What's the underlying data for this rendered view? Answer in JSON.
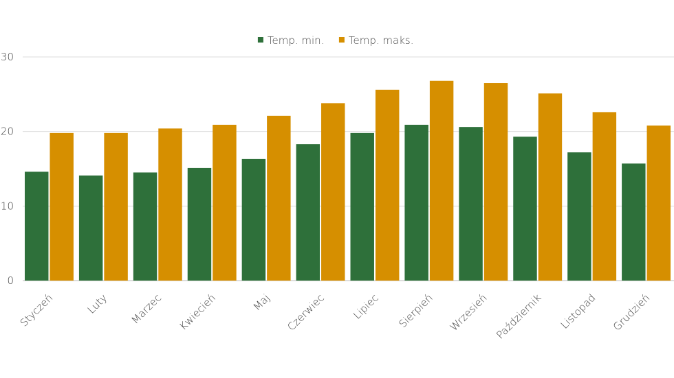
{
  "chart_data": {
    "type": "bar",
    "categories": [
      "Styczeń",
      "Luty",
      "Marzec",
      "Kwiecień",
      "Maj",
      "Czerwiec",
      "Lipiec",
      "Sierpień",
      "Wrzesień",
      "Październik",
      "Listopad",
      "Grudzień"
    ],
    "series": [
      {
        "name": "Temp. min.",
        "color": "#2e703a",
        "values": [
          14.6,
          14.1,
          14.5,
          15.1,
          16.3,
          18.3,
          19.8,
          20.9,
          20.6,
          19.3,
          17.2,
          15.7
        ]
      },
      {
        "name": "Temp. maks.",
        "color": "#d68f00",
        "values": [
          19.8,
          19.8,
          20.4,
          20.9,
          22.1,
          23.8,
          25.6,
          26.8,
          26.5,
          25.1,
          22.6,
          20.8
        ]
      }
    ],
    "ylim": [
      0,
      30
    ],
    "yticks": [
      0,
      10,
      20,
      30
    ],
    "grid": true,
    "legend": "top"
  }
}
